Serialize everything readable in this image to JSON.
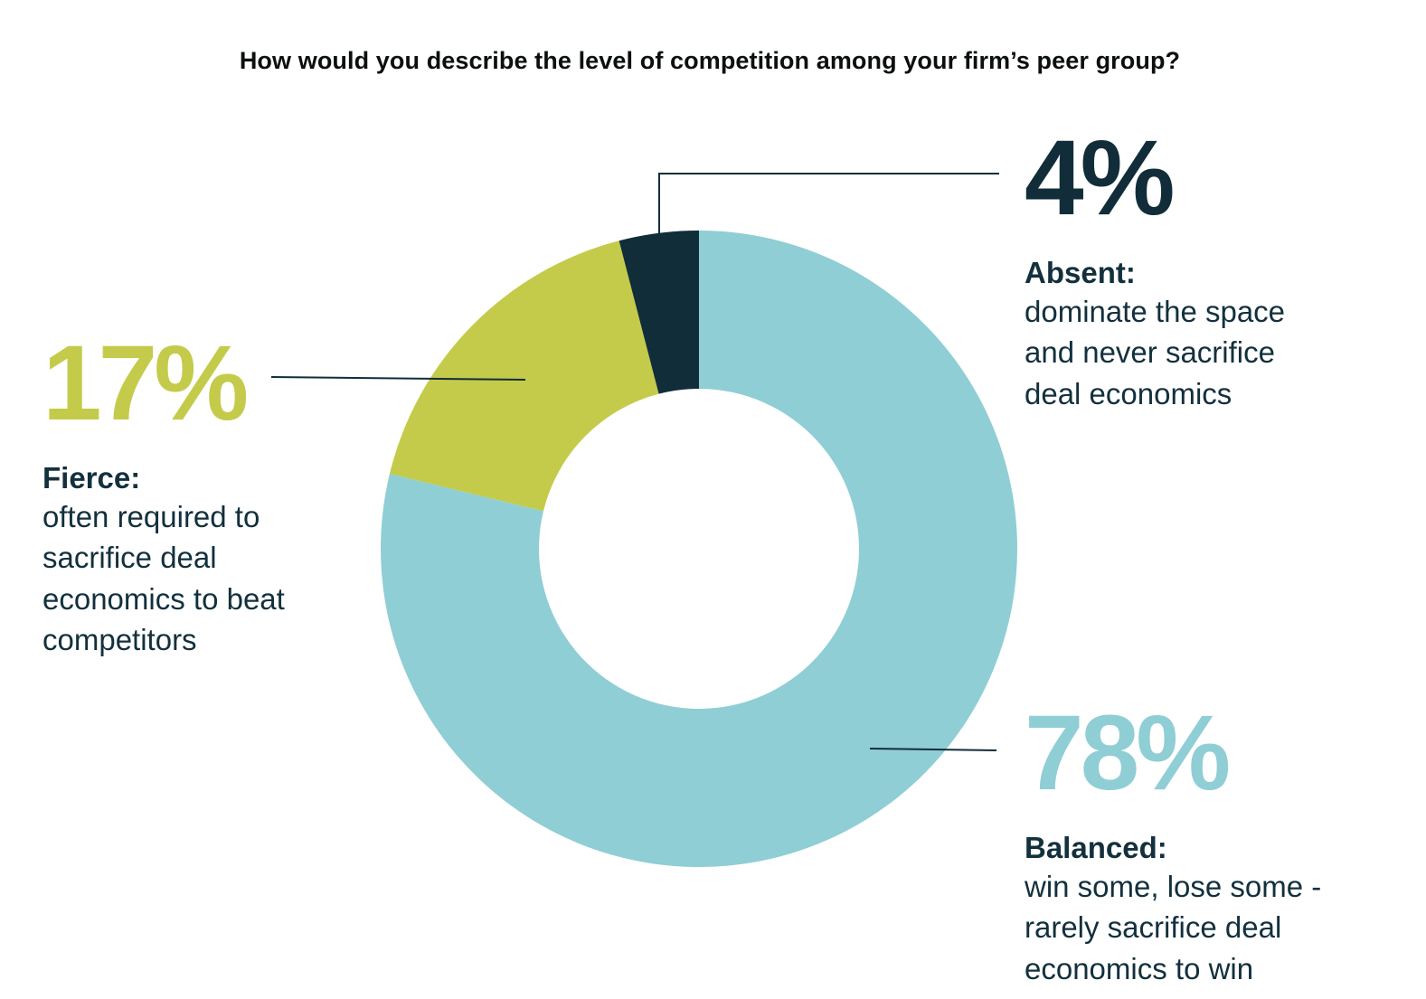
{
  "chart_data": {
    "type": "pie",
    "title": "How would you describe the level of competition among your firm’s peer group?",
    "colors": {
      "balanced": "#8fced5",
      "fierce": "#c4cb4a",
      "absent": "#112d3a",
      "leader_line": "#112d3a"
    },
    "series": [
      {
        "name": "Balanced:",
        "value": 78,
        "label": "78%",
        "description": "win some, lose some -\nrarely sacrifice deal\neconomics to win",
        "color": "#8fced5"
      },
      {
        "name": "Fierce:",
        "value": 17,
        "label": "17%",
        "description": "often required to\nsacrifice deal\neconomics to beat\ncompetitors",
        "color": "#c4cb4a"
      },
      {
        "name": "Absent:",
        "value": 4,
        "label": "4%",
        "description": "dominate the space\nand never sacrifice\ndeal economics",
        "color": "#112d3a"
      }
    ]
  }
}
